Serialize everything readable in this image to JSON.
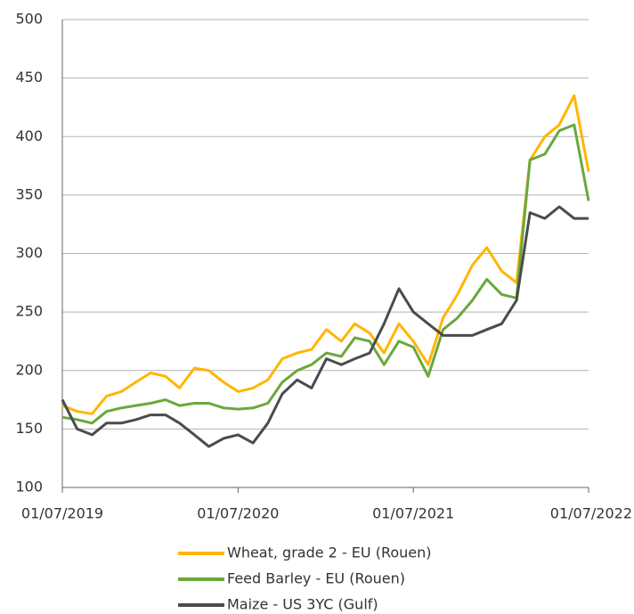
{
  "chart_data": {
    "type": "line",
    "x": [
      "01/07/2019",
      "01/08/2019",
      "01/09/2019",
      "01/10/2019",
      "01/11/2019",
      "01/12/2019",
      "01/01/2020",
      "01/02/2020",
      "01/03/2020",
      "01/04/2020",
      "01/05/2020",
      "01/06/2020",
      "01/07/2020",
      "01/08/2020",
      "01/09/2020",
      "01/10/2020",
      "01/11/2020",
      "01/12/2020",
      "01/01/2021",
      "01/02/2021",
      "01/03/2021",
      "01/04/2021",
      "01/05/2021",
      "01/06/2021",
      "01/07/2021",
      "01/08/2021",
      "01/09/2021",
      "01/10/2021",
      "01/11/2021",
      "01/12/2021",
      "01/01/2022",
      "01/02/2022",
      "01/03/2022",
      "01/04/2022",
      "01/05/2022",
      "01/06/2022",
      "01/07/2022"
    ],
    "series": [
      {
        "name": "Wheat, grade 2 - EU (Rouen)",
        "color": "#ffb600",
        "values": [
          170,
          165,
          163,
          178,
          182,
          190,
          198,
          195,
          185,
          202,
          200,
          190,
          182,
          185,
          192,
          210,
          215,
          218,
          235,
          225,
          240,
          232,
          215,
          240,
          225,
          205,
          245,
          265,
          290,
          305,
          285,
          275,
          380,
          400,
          410,
          435,
          370
        ]
      },
      {
        "name": "Feed Barley - EU (Rouen)",
        "color": "#6aa83c",
        "values": [
          160,
          158,
          155,
          165,
          168,
          170,
          172,
          175,
          170,
          172,
          172,
          168,
          167,
          168,
          172,
          190,
          200,
          205,
          215,
          212,
          228,
          225,
          205,
          225,
          220,
          195,
          235,
          245,
          260,
          278,
          265,
          262,
          380,
          385,
          405,
          410,
          345
        ]
      },
      {
        "name": "Maize - US 3YC (Gulf)",
        "color": "#4b4b4d",
        "values": [
          175,
          150,
          145,
          155,
          155,
          158,
          162,
          162,
          155,
          145,
          135,
          142,
          145,
          138,
          155,
          180,
          192,
          185,
          210,
          205,
          210,
          215,
          240,
          270,
          250,
          240,
          230,
          230,
          230,
          235,
          240,
          260,
          335,
          330,
          340,
          330,
          330
        ]
      }
    ],
    "xlim": [
      "01/07/2019",
      "01/07/2022"
    ],
    "xticks": [
      "01/07/2019",
      "01/07/2020",
      "01/07/2021",
      "01/07/2022"
    ],
    "ylim": [
      100,
      500
    ],
    "yticks": [
      100,
      150,
      200,
      250,
      300,
      350,
      400,
      450,
      500
    ],
    "grid": true
  }
}
